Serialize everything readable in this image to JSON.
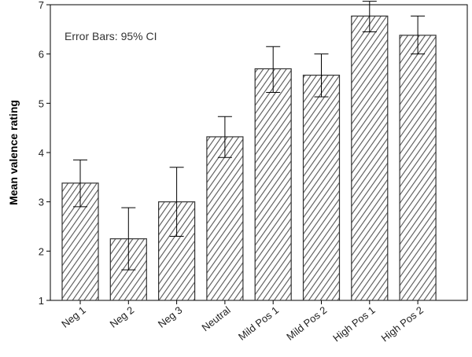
{
  "chart_data": {
    "type": "bar",
    "categories": [
      "Neg 1",
      "Neg 2",
      "Neg 3",
      "Neutral",
      "Mild Pos 1",
      "Mild Pos 2",
      "High Pos 1",
      "High Pos 2"
    ],
    "values": [
      3.38,
      2.25,
      3.0,
      4.32,
      5.7,
      5.57,
      6.77,
      6.38
    ],
    "ci_lower": [
      2.9,
      1.62,
      2.3,
      3.9,
      5.22,
      5.13,
      6.45,
      6.0
    ],
    "ci_upper": [
      3.85,
      2.88,
      3.7,
      4.73,
      6.15,
      6.0,
      7.07,
      6.77
    ],
    "title": "",
    "xlabel": "",
    "ylabel": "Mean valence rating",
    "ylim": [
      1,
      7
    ],
    "yticks": [
      "1",
      "2",
      "3",
      "4",
      "5",
      "6",
      "7"
    ],
    "annotation": "Error Bars: 95% CI",
    "grid": false,
    "bar_fill": "hatched",
    "colors": {
      "bar_stroke": "#333333",
      "hatch": "#555555",
      "axis": "#000000"
    }
  }
}
